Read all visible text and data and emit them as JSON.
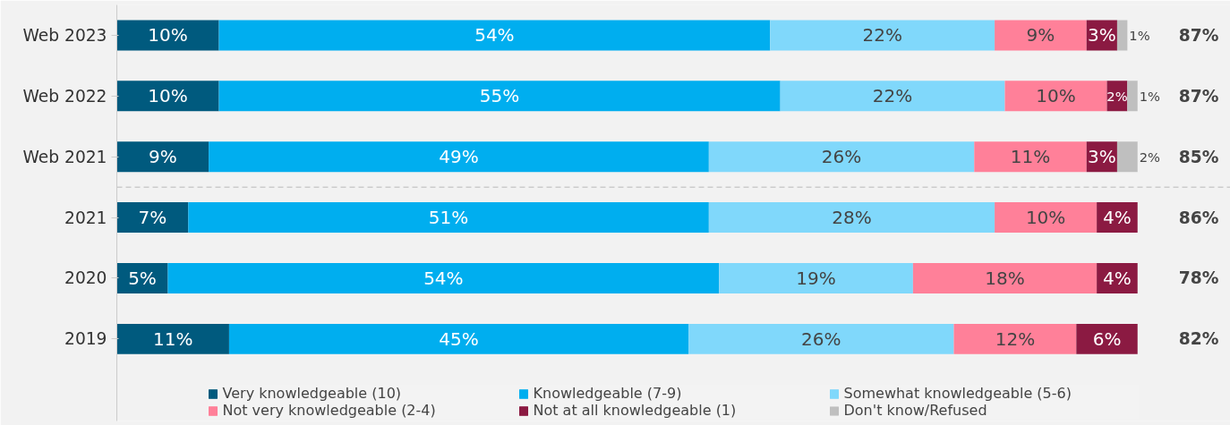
{
  "chart_data": {
    "type": "bar",
    "orientation": "horizontal",
    "stacked": true,
    "categories": [
      "Web 2023",
      "Web 2022",
      "Web 2021",
      "2021",
      "2020",
      "2019"
    ],
    "series": [
      {
        "name": "Very knowledgeable (10)",
        "color": "#005a7e",
        "values": [
          10,
          10,
          9,
          7,
          5,
          11
        ],
        "value_labels": [
          "10%",
          "10%",
          "9%",
          "7%",
          "5%",
          "11%"
        ]
      },
      {
        "name": "Knowledgeable (7-9)",
        "color": "#00aeef",
        "values": [
          54,
          55,
          49,
          51,
          54,
          45
        ],
        "value_labels": [
          "54%",
          "55%",
          "49%",
          "51%",
          "54%",
          "45%"
        ]
      },
      {
        "name": "Somewhat knowledgeable (5-6)",
        "color": "#80d8fb",
        "values": [
          22,
          22,
          26,
          28,
          19,
          26
        ],
        "value_labels": [
          "22%",
          "22%",
          "26%",
          "28%",
          "19%",
          "26%"
        ]
      },
      {
        "name": "Not very knowledgeable (2-4)",
        "color": "#ff8099",
        "values": [
          9,
          10,
          11,
          10,
          18,
          12
        ],
        "value_labels": [
          "9%",
          "10%",
          "11%",
          "10%",
          "18%",
          "12%"
        ]
      },
      {
        "name": "Not at all knowledgeable (1)",
        "color": "#8b1a42",
        "values": [
          3,
          2,
          3,
          4,
          4,
          6
        ],
        "value_labels": [
          "3%",
          "2%",
          "3%",
          "4%",
          "4%",
          "6%"
        ]
      },
      {
        "name": "Don't know/Refused",
        "color": "#bfbfbf",
        "values": [
          1,
          1,
          2,
          null,
          null,
          null
        ],
        "value_labels": [
          "1%",
          "1%",
          "2%",
          null,
          null,
          null
        ]
      }
    ],
    "annotations": [
      "87%",
      "87%",
      "85%",
      "86%",
      "78%",
      "82%"
    ],
    "tick_labels": "y",
    "legend": "bottom"
  }
}
